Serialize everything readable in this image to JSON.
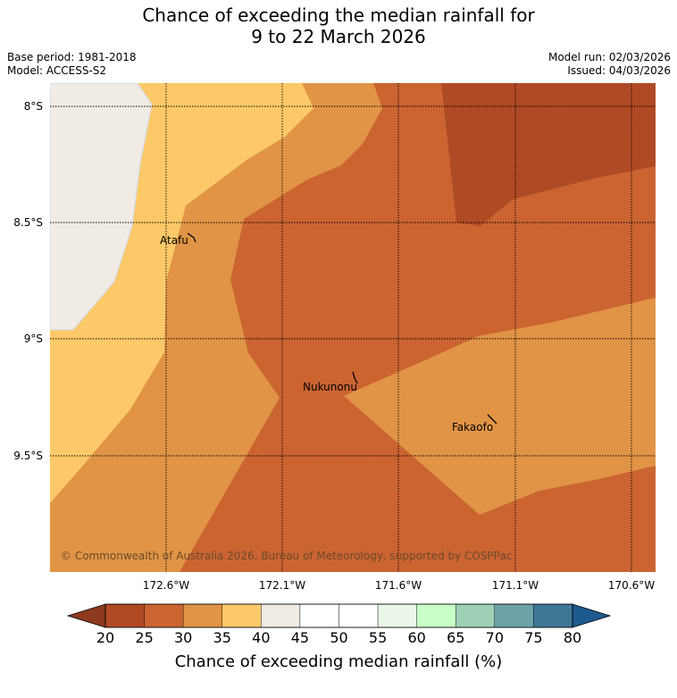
{
  "title": {
    "line1": "Chance of exceeding the median rainfall for",
    "line2": "9 to 22 March 2026"
  },
  "meta": {
    "base_period": "Base period: 1981-2018",
    "model": "Model: ACCESS-S2",
    "model_run": "Model run: 02/03/2026",
    "issued": "Issued: 04/03/2026"
  },
  "map": {
    "lat_labels": [
      "8°S",
      "8.5°S",
      "9°S",
      "9.5°S"
    ],
    "lon_labels": [
      "172.6°W",
      "172.1°W",
      "171.6°W",
      "171.1°W",
      "170.6°W"
    ],
    "places": [
      "Atafu",
      "Nukunonu",
      "Fakaofo"
    ],
    "copyright": "© Commonwealth of Australia 2026, Bureau of Meteorology, supported by COSPPac",
    "category_colors": {
      "20-25": "#b04a24",
      "25-30": "#cb6431",
      "30-35": "#e19445",
      "35-40": "#fdc968",
      "40-45": "#f0ebe4"
    }
  },
  "colorbar": {
    "ticks": [
      "20",
      "25",
      "30",
      "35",
      "40",
      "45",
      "50",
      "55",
      "60",
      "65",
      "70",
      "75",
      "80"
    ],
    "colors": [
      "#b04a24",
      "#cb6431",
      "#e19445",
      "#fdc968",
      "#f0ebe4",
      "#ffffff",
      "#ffffff",
      "#eaf6e8",
      "#c8ffc8",
      "#9ed0b6",
      "#6ba3a8",
      "#3e7796"
    ],
    "under_color": "#8d3a1e",
    "over_color": "#1d5a8f",
    "label": "Chance of exceeding median rainfall (%)"
  }
}
